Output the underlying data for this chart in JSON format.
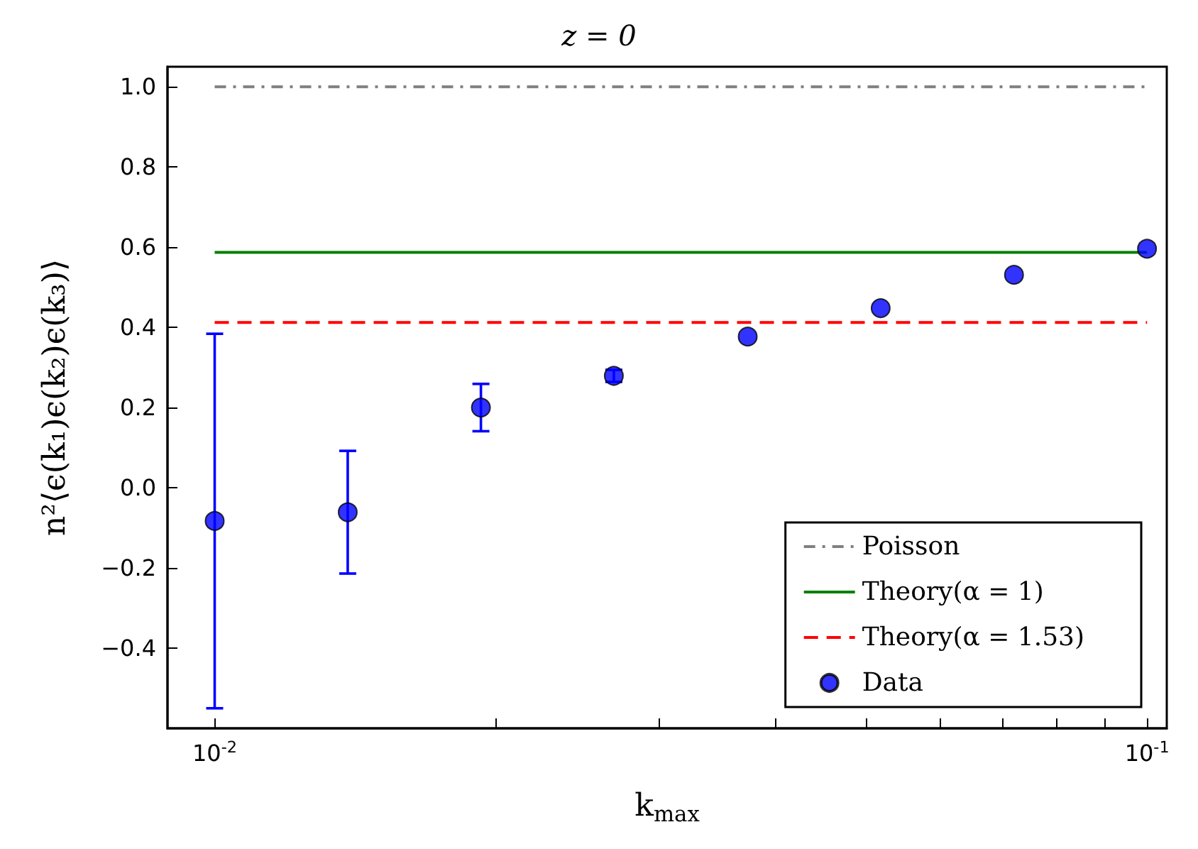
{
  "chart_data": {
    "type": "scatter",
    "title": "z = 0",
    "xlabel": "k$_{max}$",
    "ylabel": "n²⟨ϵ(k₁)ϵ(k₂)ϵ(k₃)⟩",
    "log": "x",
    "grid": false,
    "legend": "bottom right",
    "xlim": [
      0.0089,
      0.105
    ],
    "xticks": [
      {
        "value": 0.01,
        "label": "10$^{-2}$"
      },
      {
        "value": 0.02,
        "label": null
      },
      {
        "value": 0.03,
        "label": null
      },
      {
        "value": 0.04,
        "label": null
      },
      {
        "value": 0.05,
        "label": null
      },
      {
        "value": 0.06,
        "label": null
      },
      {
        "value": 0.07,
        "label": null
      },
      {
        "value": 0.08,
        "label": null
      },
      {
        "value": 0.09,
        "label": null
      },
      {
        "value": 0.1,
        "label": "10$^{-1}$"
      }
    ],
    "ylim": [
      -0.6,
      1.05
    ],
    "yticks": [
      {
        "value": -0.4,
        "label": "−0.4"
      },
      {
        "value": -0.2,
        "label": "−0.2"
      },
      {
        "value": 0,
        "label": "0.0"
      },
      {
        "value": 0.2,
        "label": "0.2"
      },
      {
        "value": 0.4,
        "label": "0.4"
      },
      {
        "value": 0.6,
        "label": "0.6"
      },
      {
        "value": 0.8,
        "label": "0.8"
      },
      {
        "value": 1,
        "label": "1.0"
      }
    ],
    "series": [
      {
        "name": "Poisson",
        "type": "line",
        "color": "#808080",
        "line_style": "dashdot",
        "marker": "none",
        "x": [
          0.01,
          0.1
        ],
        "values": [
          1,
          1
        ]
      },
      {
        "name": "Theory(α = 1)",
        "type": "line",
        "color": "#008000",
        "line_style": "solid",
        "marker": "none",
        "x": [
          0.01,
          0.1
        ],
        "values": [
          0.587,
          0.587
        ]
      },
      {
        "name": "Theory(α = 1.53)",
        "type": "line",
        "color": "#ff0000",
        "line_style": "dashed",
        "marker": "none",
        "x": [
          0.01,
          0.1
        ],
        "values": [
          0.412,
          0.412
        ]
      },
      {
        "name": "Data",
        "type": "scatter",
        "color": "#0000ff",
        "marker": "circle",
        "x": [
          0.01,
          0.01389,
          0.0193,
          0.0268,
          0.0373,
          0.0518,
          0.072,
          0.1
        ],
        "values": [
          -0.083,
          -0.061,
          0.2,
          0.279,
          0.377,
          0.448,
          0.531,
          0.596
        ],
        "errors": [
          0.467,
          0.153,
          0.059,
          0.015,
          null,
          null,
          null,
          null
        ]
      }
    ]
  }
}
